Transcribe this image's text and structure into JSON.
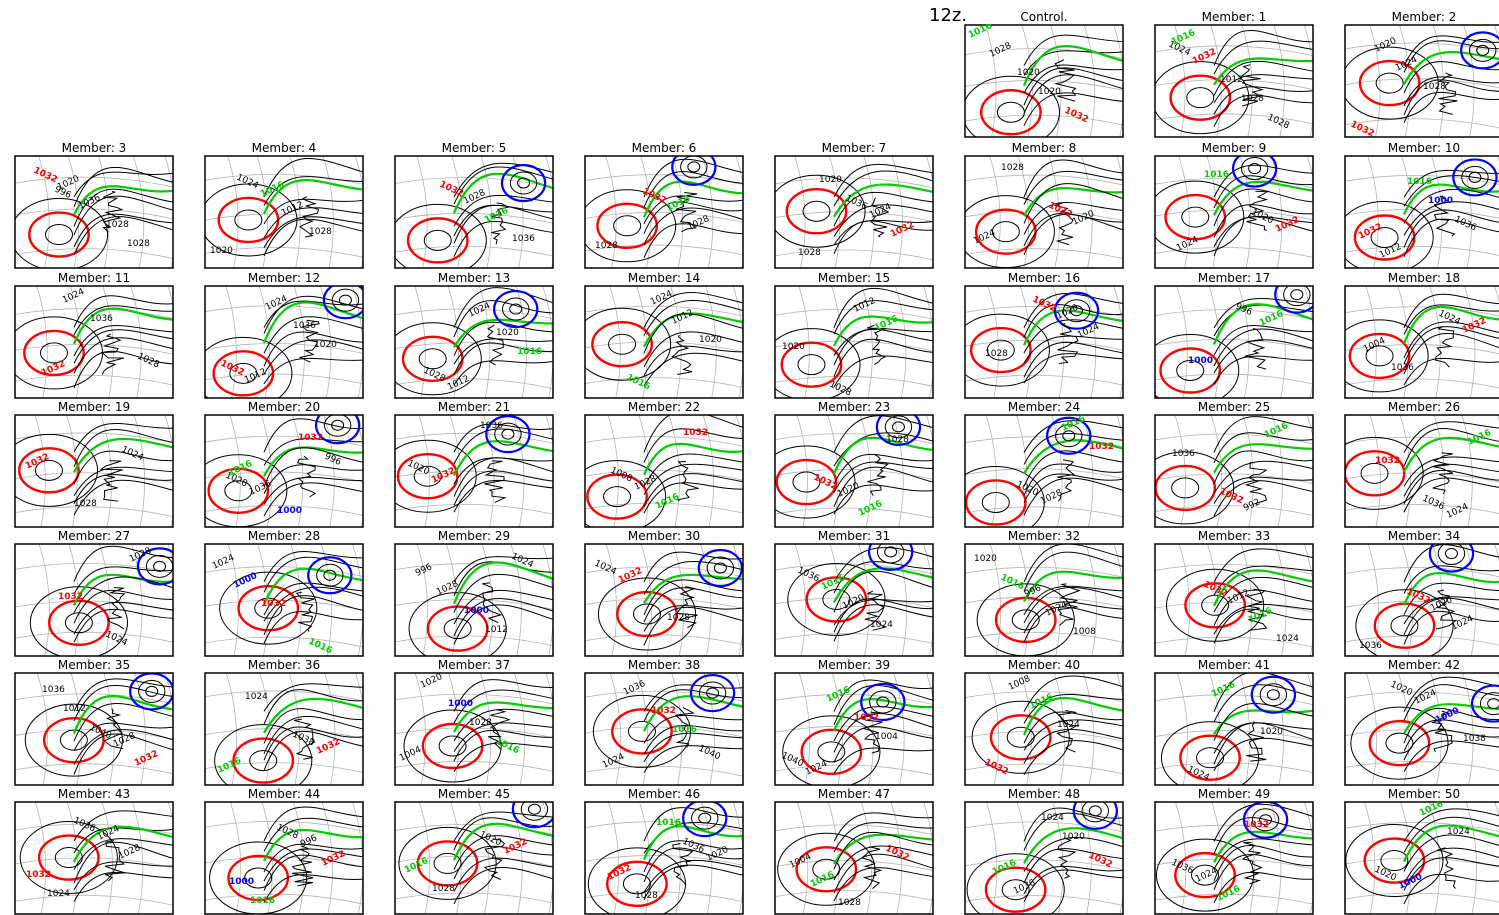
{
  "header": {
    "time_label": "12z."
  },
  "panels": [
    {
      "title": "Control.",
      "labels": [
        "1016",
        "1020",
        "1032",
        "1028",
        "1020"
      ]
    },
    {
      "title": "Member:  1",
      "labels": [
        "1016",
        "1012",
        "1028",
        "1032",
        "1028",
        "1024"
      ]
    },
    {
      "title": "Member:  2",
      "labels": [
        "1020",
        "1028",
        "1032",
        "1024"
      ]
    },
    {
      "title": "Member:  3",
      "labels": [
        "1020",
        "1028",
        "1032",
        "1036",
        "1028",
        "996"
      ]
    },
    {
      "title": "Member:  4",
      "labels": [
        "1016",
        "1028",
        "1024",
        "1012",
        "1020"
      ]
    },
    {
      "title": "Member:  5",
      "labels": [
        "1028",
        "1036",
        "1032",
        "1016"
      ]
    },
    {
      "title": "Member:  6",
      "labels": [
        "1016",
        "1028",
        "1032",
        "1028"
      ]
    },
    {
      "title": "Member:  7",
      "labels": [
        "1024",
        "1028",
        "1036",
        "1032",
        "1020"
      ]
    },
    {
      "title": "Member:  8",
      "labels": [
        "1020",
        "1028",
        "1032",
        "1024"
      ]
    },
    {
      "title": "Member:  9",
      "labels": [
        "1032",
        "1016",
        "1020",
        "1024"
      ]
    },
    {
      "title": "Member: 10",
      "labels": [
        "1032",
        "1016",
        "1036",
        "1012",
        "1000"
      ]
    },
    {
      "title": "Member: 11",
      "labels": [
        "1032",
        "1036",
        "1028",
        "1024"
      ]
    },
    {
      "title": "Member: 12",
      "labels": [
        "1012",
        "1036",
        "1032",
        "1024",
        "1020"
      ]
    },
    {
      "title": "Member: 13",
      "labels": [
        "1012",
        "1020",
        "1028",
        "1024",
        "1016"
      ]
    },
    {
      "title": "Member: 14",
      "labels": [
        "1024",
        "1020",
        "1016",
        "1012"
      ]
    },
    {
      "title": "Member: 15",
      "labels": [
        "1012",
        "1020",
        "1028",
        "1016"
      ]
    },
    {
      "title": "Member: 16",
      "labels": [
        "1020",
        "1028",
        "1032",
        "1024"
      ]
    },
    {
      "title": "Member: 17",
      "labels": [
        "1016",
        "1000",
        "996"
      ]
    },
    {
      "title": "Member: 18",
      "labels": [
        "1032",
        "1036",
        "1024",
        "1004"
      ]
    },
    {
      "title": "Member: 19",
      "labels": [
        "1032",
        "1028",
        "1024"
      ]
    },
    {
      "title": "Member: 20",
      "labels": [
        "1016",
        "1000",
        "996",
        "1036",
        "1032",
        "1028"
      ]
    },
    {
      "title": "Member: 21",
      "labels": [
        "1032",
        "1036",
        "1020"
      ]
    },
    {
      "title": "Member: 22",
      "labels": [
        "1028",
        "1032",
        "1008",
        "1016"
      ]
    },
    {
      "title": "Member: 23",
      "labels": [
        "1020",
        "1028",
        "1032",
        "1016"
      ]
    },
    {
      "title": "Member: 24",
      "labels": [
        "1028",
        "1032",
        "1020",
        "1016"
      ]
    },
    {
      "title": "Member: 25",
      "labels": [
        "992",
        "1036",
        "1032",
        "1016"
      ]
    },
    {
      "title": "Member: 26",
      "labels": [
        "1024",
        "1032",
        "1036",
        "1016"
      ]
    },
    {
      "title": "Member: 27",
      "labels": [
        "1028",
        "1032",
        "1024"
      ]
    },
    {
      "title": "Member: 28",
      "labels": [
        "1024",
        "1032",
        "1016",
        "1000"
      ]
    },
    {
      "title": "Member: 29",
      "labels": [
        "996",
        "1000",
        "1024",
        "1028",
        "1012"
      ]
    },
    {
      "title": "Member: 30",
      "labels": [
        "1032",
        "1028",
        "1024"
      ]
    },
    {
      "title": "Member: 31",
      "labels": [
        "1016",
        "1024",
        "1036",
        "1020"
      ]
    },
    {
      "title": "Member: 32",
      "labels": [
        "996",
        "1008",
        "1016",
        "1024",
        "1020"
      ]
    },
    {
      "title": "Member: 33",
      "labels": [
        "1012",
        "1024",
        "1032",
        "1016"
      ]
    },
    {
      "title": "Member: 34",
      "labels": [
        "1020",
        "1036",
        "1032",
        "1024"
      ]
    },
    {
      "title": "Member: 35",
      "labels": [
        "1028",
        "1036",
        "1040",
        "1032",
        "1012"
      ]
    },
    {
      "title": "Member: 36",
      "labels": [
        "1032",
        "1024",
        "1038",
        "1016"
      ]
    },
    {
      "title": "Member: 37",
      "labels": [
        "1004",
        "1000",
        "1016",
        "1020",
        "1028"
      ]
    },
    {
      "title": "Member: 38",
      "labels": [
        "1024",
        "1032",
        "1040",
        "1036",
        "1016"
      ]
    },
    {
      "title": "Member: 39",
      "labels": [
        "1024",
        "1032",
        "1040",
        "1016",
        "1004"
      ]
    },
    {
      "title": "Member: 40",
      "labels": [
        "1008",
        "1024",
        "1032",
        "1016"
      ]
    },
    {
      "title": "Member: 41",
      "labels": [
        "1016",
        "1020",
        "1024"
      ]
    },
    {
      "title": "Member: 42",
      "labels": [
        "1024",
        "1038",
        "1020",
        "1000"
      ]
    },
    {
      "title": "Member: 43",
      "labels": [
        "1024",
        "1032",
        "1036",
        "1028",
        "1024"
      ]
    },
    {
      "title": "Member: 44",
      "labels": [
        "996",
        "1000",
        "1028",
        "1032",
        "1016"
      ]
    },
    {
      "title": "Member: 45",
      "labels": [
        "1032",
        "1028",
        "1020",
        "1016"
      ]
    },
    {
      "title": "Member: 46",
      "labels": [
        "1020",
        "1028",
        "1036",
        "1032",
        "1016"
      ]
    },
    {
      "title": "Member: 47",
      "labels": [
        "1004",
        "1028",
        "1032",
        "1016"
      ]
    },
    {
      "title": "Member: 48",
      "labels": [
        "1016",
        "1024",
        "1032",
        "1036",
        "1020"
      ]
    },
    {
      "title": "Member: 49",
      "labels": [
        "1024",
        "1032",
        "1036",
        "1016"
      ]
    },
    {
      "title": "Member: 50",
      "labels": [
        "1000",
        "1024",
        "1020",
        "1016"
      ]
    }
  ],
  "colors": {
    "isobar": "#000000",
    "isobar_1016": "#00cc00",
    "isobar_1032": "#ff0000",
    "isobar_1000": "#0000ff",
    "graticule": "#b4b4b4",
    "low_center": "#d2a050"
  }
}
